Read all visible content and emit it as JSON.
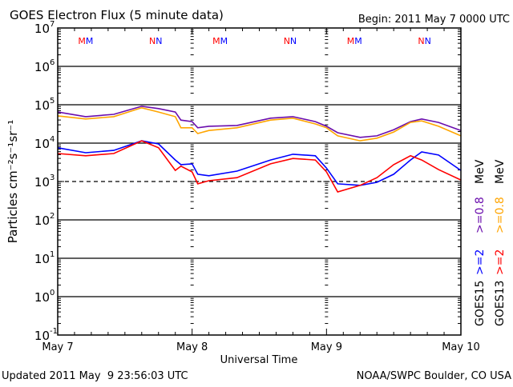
{
  "chart_data": {
    "type": "line",
    "title": "GOES Electron Flux (5 minute data)",
    "begin_label": "Begin: 2011 May 7 0000 UTC",
    "xlabel": "Universal Time",
    "ylabel": "Particles cm⁻²s⁻¹sr⁻¹",
    "y_scale": "log",
    "ylim_log10": [
      -1,
      7
    ],
    "y_ticks": [
      {
        "base": "10",
        "exp": "7",
        "log": 7
      },
      {
        "base": "10",
        "exp": "6",
        "log": 6
      },
      {
        "base": "10",
        "exp": "5",
        "log": 5
      },
      {
        "base": "10",
        "exp": "4",
        "log": 4
      },
      {
        "base": "10",
        "exp": "3",
        "log": 3
      },
      {
        "base": "10",
        "exp": "2",
        "log": 2
      },
      {
        "base": "10",
        "exp": "1",
        "log": 1
      },
      {
        "base": "10",
        "exp": "0",
        "log": 0
      },
      {
        "base": "10",
        "exp": "-1",
        "log": -1
      }
    ],
    "xlim_hours": [
      0,
      72
    ],
    "x_ticks": [
      {
        "label": "May 7",
        "hour": 0
      },
      {
        "label": "May 8",
        "hour": 24
      },
      {
        "label": "May 9",
        "hour": 48
      },
      {
        "label": "May 10",
        "hour": 72
      }
    ],
    "threshold_log10": 3,
    "x_hours": [
      0,
      5,
      10,
      15,
      18,
      21,
      22,
      24,
      25,
      27,
      32,
      38,
      42,
      46,
      48,
      50,
      54,
      57,
      60,
      63,
      65,
      68,
      72
    ],
    "series": [
      {
        "name": "GOES15 >=0.8 MeV",
        "color": "#6a0dad",
        "log10_flux": [
          4.81,
          4.69,
          4.75,
          4.96,
          4.9,
          4.81,
          4.6,
          4.56,
          4.4,
          4.44,
          4.46,
          4.65,
          4.69,
          4.56,
          4.44,
          4.27,
          4.15,
          4.19,
          4.35,
          4.56,
          4.63,
          4.54,
          4.33
        ]
      },
      {
        "name": "GOES13 >=0.8 MeV",
        "color": "#ffa500",
        "log10_flux": [
          4.71,
          4.63,
          4.69,
          4.92,
          4.81,
          4.69,
          4.4,
          4.4,
          4.25,
          4.33,
          4.4,
          4.6,
          4.65,
          4.5,
          4.4,
          4.19,
          4.06,
          4.13,
          4.29,
          4.54,
          4.58,
          4.44,
          4.19
        ]
      },
      {
        "name": "GOES15 >=2 MeV",
        "color": "#0000ff",
        "log10_flux": [
          3.88,
          3.75,
          3.81,
          4.06,
          3.98,
          3.56,
          3.44,
          3.46,
          3.19,
          3.15,
          3.27,
          3.56,
          3.71,
          3.67,
          3.35,
          2.94,
          2.9,
          2.98,
          3.19,
          3.56,
          3.77,
          3.69,
          3.29
        ]
      },
      {
        "name": "GOES13 >=2 MeV",
        "color": "#ff0000",
        "log10_flux": [
          3.73,
          3.67,
          3.73,
          4.06,
          3.88,
          3.29,
          3.4,
          3.25,
          2.94,
          3.02,
          3.1,
          3.46,
          3.6,
          3.56,
          3.25,
          2.73,
          2.9,
          3.1,
          3.44,
          3.67,
          3.56,
          3.31,
          3.04
        ]
      }
    ],
    "markers": [
      {
        "hour": 5,
        "text": "M"
      },
      {
        "hour": 17.5,
        "text": "N"
      },
      {
        "hour": 29,
        "text": "M"
      },
      {
        "hour": 41.5,
        "text": "N"
      },
      {
        "hour": 53,
        "text": "M"
      },
      {
        "hour": 65.5,
        "text": "N"
      }
    ],
    "marker_colors": [
      "#ff0000",
      "#0000ff"
    ],
    "legend": {
      "placement": "right",
      "col1": [
        {
          "text": "GOES15",
          "color": "#000000"
        },
        {
          "text": ">=2",
          "color": "#0000ff"
        },
        {
          "text": ">=0.8",
          "color": "#6a0dad"
        },
        {
          "text": "MeV",
          "color": "#000000"
        }
      ],
      "col2": [
        {
          "text": "GOES13",
          "color": "#000000"
        },
        {
          "text": ">=2",
          "color": "#ff0000"
        },
        {
          "text": ">=0.8",
          "color": "#ffa500"
        },
        {
          "text": "MeV",
          "color": "#000000"
        }
      ]
    }
  },
  "footer": {
    "updated": "Updated 2011 May  9 23:56:03 UTC",
    "credit": "NOAA/SWPC Boulder, CO USA"
  }
}
